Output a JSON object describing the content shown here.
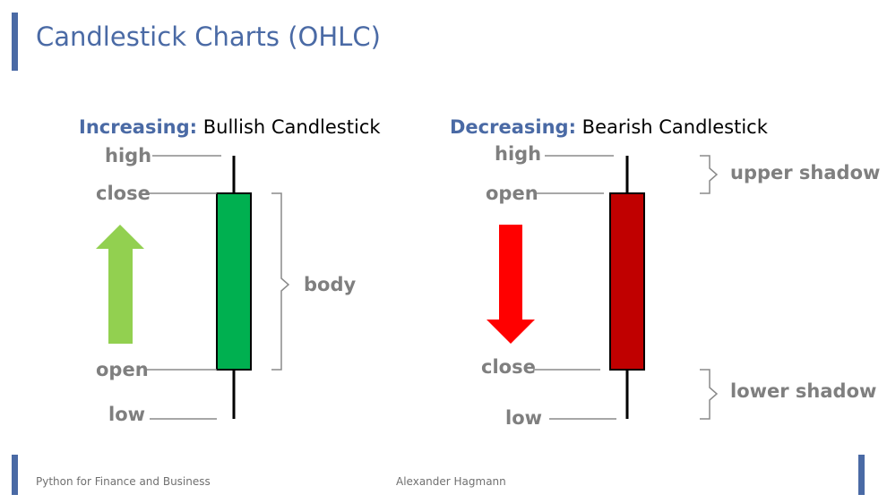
{
  "title": "Candlestick Charts (OHLC)",
  "left": {
    "keyword": "Increasing:",
    "text": " Bullish Candlestick",
    "labels": {
      "high": "high",
      "close": "close",
      "open": "open",
      "low": "low"
    },
    "body_label": "body",
    "candle_color": "#00b050",
    "arrow_color": "#92d050"
  },
  "right": {
    "keyword": "Decreasing:",
    "text": " Bearish Candlestick",
    "labels": {
      "high": "high",
      "open": "open",
      "close": "close",
      "low": "low"
    },
    "upper_shadow_label": "upper shadow",
    "lower_shadow_label": "lower shadow",
    "candle_color": "#c00000",
    "arrow_color": "#ff0000"
  },
  "footer": {
    "left": "Python for Finance and Business",
    "center": "Alexander Hagmann"
  },
  "colors": {
    "accent": "#4a6aa5",
    "label_gray": "#7f7f7f"
  }
}
